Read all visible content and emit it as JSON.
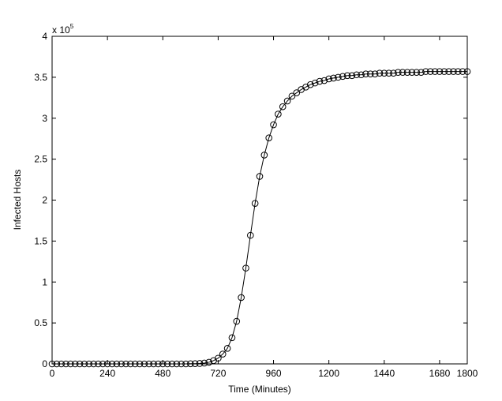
{
  "chart_data": {
    "type": "line",
    "xlabel": "Time (Minutes)",
    "ylabel": "Infected Hosts",
    "y_multiplier": {
      "base": "x 10",
      "exponent": "5"
    },
    "x": [
      0,
      20,
      40,
      60,
      80,
      100,
      120,
      140,
      160,
      180,
      200,
      220,
      240,
      260,
      280,
      300,
      320,
      340,
      360,
      380,
      400,
      420,
      440,
      460,
      480,
      500,
      520,
      540,
      560,
      580,
      600,
      620,
      640,
      660,
      680,
      700,
      720,
      740,
      760,
      780,
      800,
      820,
      840,
      860,
      880,
      900,
      920,
      940,
      960,
      980,
      1000,
      1020,
      1040,
      1060,
      1080,
      1100,
      1120,
      1140,
      1160,
      1180,
      1200,
      1220,
      1240,
      1260,
      1280,
      1300,
      1320,
      1340,
      1360,
      1380,
      1400,
      1420,
      1440,
      1460,
      1480,
      1500,
      1520,
      1540,
      1560,
      1580,
      1600,
      1620,
      1640,
      1660,
      1680,
      1700,
      1720,
      1740,
      1760,
      1780,
      1800
    ],
    "values": [
      0,
      0,
      0,
      0,
      0,
      0,
      0,
      0,
      0,
      0,
      0,
      0,
      0,
      0,
      0,
      0,
      0,
      0,
      0,
      0,
      0,
      0,
      0,
      0,
      0,
      0,
      0,
      0,
      0,
      0,
      0.002,
      0.003,
      0.005,
      0.01,
      0.02,
      0.04,
      0.07,
      0.12,
      0.19,
      0.32,
      0.52,
      0.81,
      1.17,
      1.57,
      1.96,
      2.29,
      2.55,
      2.76,
      2.92,
      3.05,
      3.14,
      3.21,
      3.27,
      3.31,
      3.35,
      3.38,
      3.41,
      3.43,
      3.45,
      3.46,
      3.48,
      3.49,
      3.5,
      3.51,
      3.52,
      3.52,
      3.53,
      3.53,
      3.54,
      3.54,
      3.54,
      3.55,
      3.55,
      3.55,
      3.55,
      3.56,
      3.56,
      3.56,
      3.56,
      3.56,
      3.56,
      3.57,
      3.57,
      3.57,
      3.57,
      3.57,
      3.57,
      3.57,
      3.57,
      3.57,
      3.57
    ],
    "color": "#000000",
    "marker": "circle",
    "xlim": [
      0,
      1800
    ],
    "xticks": [
      0,
      240,
      480,
      720,
      960,
      1200,
      1440,
      1680,
      1800
    ],
    "ylim": [
      0,
      4
    ],
    "yticks": [
      0,
      0.5,
      1,
      1.5,
      2,
      2.5,
      3,
      3.5,
      4
    ],
    "grid": false
  }
}
